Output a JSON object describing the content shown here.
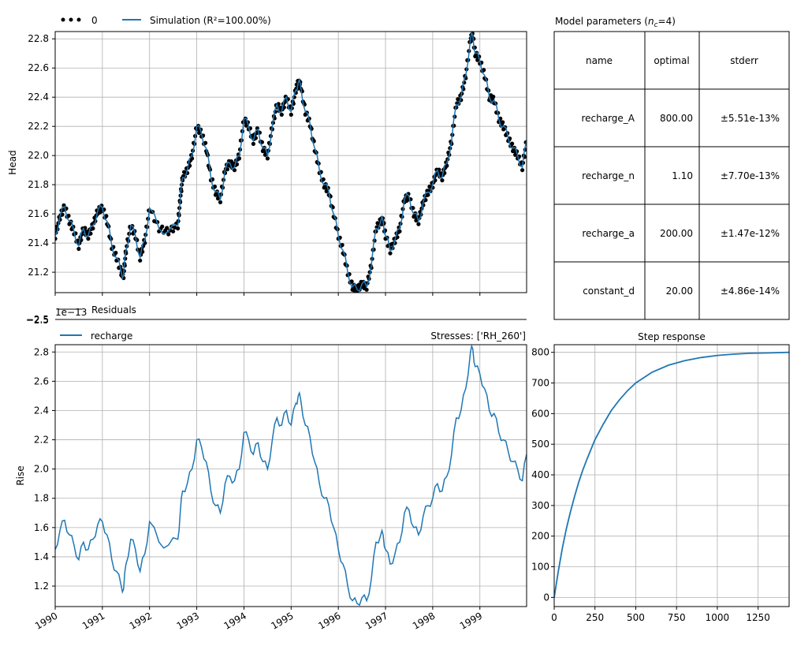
{
  "colors": {
    "series": "#1f77b4",
    "observed": "#000000",
    "grid": "#b0b0b0"
  },
  "legends": {
    "observed_label": "0",
    "simulation_label": "Simulation (R²=100.00%)",
    "recharge_label": "recharge",
    "stresses_label": "Stresses: ['RH_260']"
  },
  "residuals": {
    "title": "Residuals",
    "offset_text": "1e−13",
    "tick_text": "−2.5"
  },
  "table": {
    "title": "Model parameters (n_c=4)",
    "headers": [
      "name",
      "optimal",
      "stderr"
    ],
    "rows": [
      {
        "name": "recharge_A",
        "optimal": "800.00",
        "stderr": "±5.51e-13%"
      },
      {
        "name": "recharge_n",
        "optimal": "1.10",
        "stderr": "±7.70e-13%"
      },
      {
        "name": "recharge_a",
        "optimal": "200.00",
        "stderr": "±1.47e-12%"
      },
      {
        "name": "constant_d",
        "optimal": "20.00",
        "stderr": "±4.86e-14%"
      }
    ]
  },
  "chart_data": [
    {
      "id": "head",
      "type": "line",
      "ylabel": "Head",
      "xlim": [
        1990.0,
        1999.99
      ],
      "ylim": [
        21.06,
        22.85
      ],
      "yticks": [
        "21.2",
        "21.4",
        "21.6",
        "21.8",
        "22.0",
        "22.2",
        "22.4",
        "22.6",
        "22.8"
      ],
      "grid": true,
      "legend": "top-left, outside",
      "series": [
        {
          "name": "0",
          "style": "markers"
        },
        {
          "name": "Simulation (R²=100.00%)",
          "style": "line"
        }
      ],
      "x": [
        1990.0,
        1990.1,
        1990.2,
        1990.3,
        1990.4,
        1990.5,
        1990.6,
        1990.7,
        1990.8,
        1990.9,
        1991.0,
        1991.1,
        1991.2,
        1991.3,
        1991.4,
        1991.45,
        1991.5,
        1991.6,
        1991.7,
        1991.8,
        1991.9,
        1992.0,
        1992.2,
        1992.4,
        1992.6,
        1992.65,
        1992.7,
        1992.8,
        1992.9,
        1993.0,
        1993.1,
        1993.2,
        1993.3,
        1993.4,
        1993.5,
        1993.6,
        1993.7,
        1993.8,
        1993.9,
        1994.0,
        1994.1,
        1994.2,
        1994.3,
        1994.4,
        1994.5,
        1994.6,
        1994.7,
        1994.8,
        1994.9,
        1995.0,
        1995.1,
        1995.15,
        1995.2,
        1995.3,
        1995.4,
        1995.5,
        1995.6,
        1995.7,
        1995.8,
        1995.9,
        1996.0,
        1996.1,
        1996.2,
        1996.3,
        1996.4,
        1996.5,
        1996.6,
        1996.7,
        1996.8,
        1996.9,
        1996.95,
        1997.0,
        1997.1,
        1997.2,
        1997.3,
        1997.4,
        1997.5,
        1997.6,
        1997.7,
        1997.8,
        1997.9,
        1998.0,
        1998.1,
        1998.2,
        1998.3,
        1998.4,
        1998.5,
        1998.6,
        1998.7,
        1998.8,
        1998.85,
        1998.9,
        1999.0,
        1999.1,
        1999.2,
        1999.3,
        1999.4,
        1999.5,
        1999.6,
        1999.7,
        1999.8,
        1999.9,
        1999.99
      ],
      "y": [
        21.45,
        21.58,
        21.65,
        21.55,
        21.48,
        21.38,
        21.5,
        21.45,
        21.52,
        21.62,
        21.64,
        21.55,
        21.38,
        21.3,
        21.2,
        21.18,
        21.35,
        21.52,
        21.45,
        21.3,
        21.42,
        21.64,
        21.5,
        21.48,
        21.52,
        21.7,
        21.85,
        21.9,
        22.0,
        22.2,
        22.15,
        22.05,
        21.85,
        21.75,
        21.7,
        21.9,
        21.95,
        21.92,
        22.0,
        22.25,
        22.2,
        22.1,
        22.18,
        22.05,
        22.0,
        22.2,
        22.35,
        22.3,
        22.4,
        22.3,
        22.45,
        22.5,
        22.48,
        22.3,
        22.22,
        22.05,
        21.9,
        21.8,
        21.75,
        21.6,
        21.45,
        21.35,
        21.2,
        21.1,
        21.08,
        21.12,
        21.1,
        21.25,
        21.5,
        21.55,
        21.55,
        21.45,
        21.35,
        21.42,
        21.5,
        21.7,
        21.72,
        21.6,
        21.55,
        21.68,
        21.75,
        21.8,
        21.9,
        21.85,
        21.95,
        22.1,
        22.35,
        22.4,
        22.55,
        22.8,
        22.82,
        22.7,
        22.65,
        22.55,
        22.4,
        22.38,
        22.25,
        22.2,
        22.12,
        22.05,
        22.0,
        21.92,
        22.1
      ]
    },
    {
      "id": "recharge",
      "type": "line",
      "ylabel": "Rise",
      "xlim": [
        1990.0,
        1999.99
      ],
      "ylim": [
        1.06,
        2.85
      ],
      "yticks": [
        "1.2",
        "1.4",
        "1.6",
        "1.8",
        "2.0",
        "2.2",
        "2.4",
        "2.6",
        "2.8"
      ],
      "xticks": [
        "1990",
        "1991",
        "1992",
        "1993",
        "1994",
        "1995",
        "1996",
        "1997",
        "1998",
        "1999"
      ],
      "grid": true,
      "legend": "top-left, outside",
      "series": [
        {
          "name": "recharge"
        }
      ],
      "x": [
        1990.0,
        1990.1,
        1990.2,
        1990.3,
        1990.4,
        1990.5,
        1990.6,
        1990.7,
        1990.8,
        1990.9,
        1991.0,
        1991.1,
        1991.2,
        1991.3,
        1991.4,
        1991.45,
        1991.5,
        1991.6,
        1991.7,
        1991.8,
        1991.9,
        1992.0,
        1992.2,
        1992.4,
        1992.6,
        1992.65,
        1992.7,
        1992.8,
        1992.9,
        1993.0,
        1993.1,
        1993.2,
        1993.3,
        1993.4,
        1993.5,
        1993.6,
        1993.7,
        1993.8,
        1993.9,
        1994.0,
        1994.1,
        1994.2,
        1994.3,
        1994.4,
        1994.5,
        1994.6,
        1994.7,
        1994.8,
        1994.9,
        1995.0,
        1995.1,
        1995.15,
        1995.2,
        1995.3,
        1995.4,
        1995.5,
        1995.6,
        1995.7,
        1995.8,
        1995.9,
        1996.0,
        1996.1,
        1996.2,
        1996.3,
        1996.4,
        1996.5,
        1996.6,
        1996.7,
        1996.8,
        1996.9,
        1996.95,
        1997.0,
        1997.1,
        1997.2,
        1997.3,
        1997.4,
        1997.5,
        1997.6,
        1997.7,
        1997.8,
        1997.9,
        1998.0,
        1998.1,
        1998.2,
        1998.3,
        1998.4,
        1998.5,
        1998.6,
        1998.7,
        1998.8,
        1998.85,
        1998.9,
        1999.0,
        1999.1,
        1999.2,
        1999.3,
        1999.4,
        1999.5,
        1999.6,
        1999.7,
        1999.8,
        1999.9,
        1999.99
      ],
      "y": [
        1.45,
        1.58,
        1.65,
        1.55,
        1.48,
        1.38,
        1.5,
        1.45,
        1.52,
        1.62,
        1.64,
        1.55,
        1.38,
        1.3,
        1.2,
        1.18,
        1.35,
        1.52,
        1.45,
        1.3,
        1.42,
        1.64,
        1.5,
        1.48,
        1.52,
        1.7,
        1.85,
        1.9,
        2.0,
        2.2,
        2.15,
        2.05,
        1.85,
        1.75,
        1.7,
        1.9,
        1.95,
        1.92,
        2.0,
        2.25,
        2.2,
        2.1,
        2.18,
        2.05,
        2.0,
        2.2,
        2.35,
        2.3,
        2.4,
        2.3,
        2.45,
        2.5,
        2.48,
        2.3,
        2.22,
        2.05,
        1.9,
        1.8,
        1.75,
        1.6,
        1.45,
        1.35,
        1.2,
        1.1,
        1.08,
        1.12,
        1.1,
        1.25,
        1.5,
        1.55,
        1.55,
        1.45,
        1.35,
        1.42,
        1.5,
        1.7,
        1.72,
        1.6,
        1.55,
        1.68,
        1.75,
        1.8,
        1.9,
        1.85,
        1.95,
        2.1,
        2.35,
        2.4,
        2.55,
        2.8,
        2.82,
        2.7,
        2.65,
        2.55,
        2.4,
        2.38,
        2.25,
        2.2,
        2.12,
        2.05,
        2.0,
        1.92,
        2.1
      ]
    },
    {
      "id": "step",
      "type": "line",
      "title": "Step response",
      "xlim": [
        0,
        1440
      ],
      "ylim": [
        -30,
        825
      ],
      "xticks": [
        "0",
        "250",
        "500",
        "750",
        "1000",
        "1250"
      ],
      "yticks": [
        "0",
        "100",
        "200",
        "300",
        "400",
        "500",
        "600",
        "700",
        "800"
      ],
      "grid": true,
      "x": [
        0,
        25,
        50,
        75,
        100,
        125,
        150,
        175,
        200,
        250,
        300,
        350,
        400,
        450,
        500,
        600,
        700,
        800,
        900,
        1000,
        1100,
        1200,
        1300,
        1440
      ],
      "y": [
        0,
        85,
        160,
        225,
        280,
        330,
        375,
        415,
        450,
        515,
        565,
        610,
        645,
        675,
        700,
        735,
        758,
        773,
        783,
        790,
        794,
        797,
        798,
        800
      ]
    }
  ]
}
